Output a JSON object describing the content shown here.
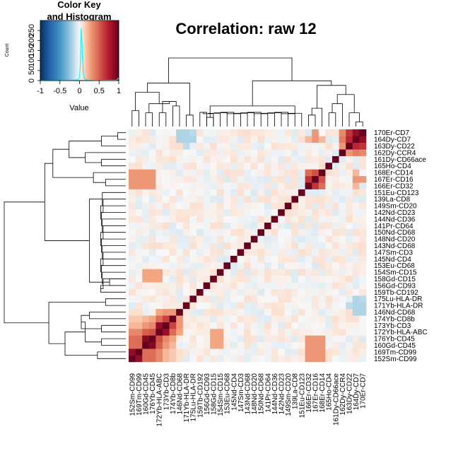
{
  "chart_data": {
    "type": "heatmap",
    "title": "Correlation: raw 12",
    "labels": [
      "152Sm-CD99",
      "169Tm-CD99",
      "160Gd-CD45",
      "176Yb-CD45",
      "172Yb-HLA-ABC",
      "173Yb-CD3",
      "174Yb-CD8b",
      "146Nd-CD68",
      "171Yb-HLA-DR",
      "175Lu-HLA-DR",
      "159Tb-CD192",
      "156Gd-CD93",
      "158Gd-CD15",
      "154Sm-CD15",
      "153Eu-CD68",
      "145Nd-CD4",
      "147Sm-CD3",
      "143Nd-CD68",
      "148Nd-CD20",
      "150Nd-CD68",
      "141Pr-CD64",
      "144Nd-CD36",
      "142Nd-CD23",
      "149Sm-CD20",
      "139La-CD8",
      "151Eu-CD123",
      "166Er-CD32",
      "167Er-CD16",
      "168Er-CD14",
      "165Ho-CD4",
      "161Dy-CD66ace",
      "162Dy-CCR4",
      "163Dy-CD22",
      "164Dy-CD7",
      "170Er-CD7"
    ],
    "color_key": {
      "title": "Color Key\nand Histogram",
      "x_label": "Value",
      "y_label": "Count",
      "x_ticks": [
        "-1",
        "-0.5",
        "0",
        "0.5",
        "1"
      ],
      "y_ticks": [
        "0",
        "50",
        "100",
        "150",
        "200",
        "250"
      ],
      "range": [
        -1,
        1
      ],
      "colors": {
        "low": "#053061",
        "mid": "#f7f7f7",
        "high": "#67001f"
      },
      "histogram_color": "#00ffff"
    },
    "grid": false,
    "legend": "top-left"
  }
}
